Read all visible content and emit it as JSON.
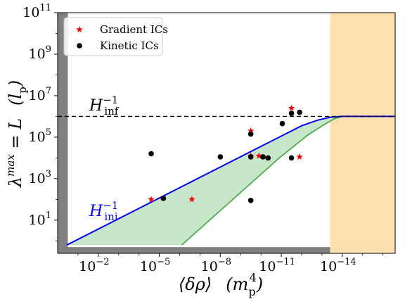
{
  "chart_data": {
    "type": "scatter",
    "x_scale": "log-reversed",
    "y_scale": "log",
    "x_exp_range": [
      0,
      -16.6
    ],
    "y_exp_range": [
      -0.6,
      11
    ],
    "xticks": [
      {
        "exp": -2,
        "label_base": "10",
        "label_exp": "−2"
      },
      {
        "exp": -5,
        "label_base": "10",
        "label_exp": "−5"
      },
      {
        "exp": -8,
        "label_base": "10",
        "label_exp": "−8"
      },
      {
        "exp": -11,
        "label_base": "10",
        "label_exp": "−11"
      },
      {
        "exp": -14,
        "label_base": "10",
        "label_exp": "−14"
      }
    ],
    "yticks": [
      {
        "exp": 1,
        "label_base": "10",
        "label_exp": "1"
      },
      {
        "exp": 3,
        "label_base": "10",
        "label_exp": "3"
      },
      {
        "exp": 5,
        "label_base": "10",
        "label_exp": "5"
      },
      {
        "exp": 7,
        "label_base": "10",
        "label_exp": "7"
      },
      {
        "exp": 9,
        "label_base": "10",
        "label_exp": "9"
      },
      {
        "exp": 11,
        "label_base": "10",
        "label_exp": "11"
      }
    ],
    "xlabel": "⟨δρ⟩   (m_p^4)",
    "ylabel": "λ^max = L   (l_p)",
    "legend": {
      "position": "top-left",
      "entries": [
        {
          "label": "Gradient ICs",
          "marker": "star",
          "color": "#ff0000"
        },
        {
          "label": "Kinetic ICs",
          "marker": "circle",
          "color": "#000000"
        }
      ]
    },
    "series": [
      {
        "name": "Gradient ICs",
        "marker": "star",
        "color": "#ff0000",
        "points": [
          {
            "x_exp": -4.6,
            "y_exp": 2.0
          },
          {
            "x_exp": -6.6,
            "y_exp": 2.0
          },
          {
            "x_exp": -9.5,
            "y_exp": 5.3
          },
          {
            "x_exp": -9.5,
            "y_exp": 4.1
          },
          {
            "x_exp": -9.9,
            "y_exp": 4.1
          },
          {
            "x_exp": -11.5,
            "y_exp": 6.4
          },
          {
            "x_exp": -11.9,
            "y_exp": 4.05
          }
        ]
      },
      {
        "name": "Kinetic ICs",
        "marker": "circle",
        "color": "#000000",
        "points": [
          {
            "x_exp": -4.6,
            "y_exp": 4.2
          },
          {
            "x_exp": -5.2,
            "y_exp": 2.05
          },
          {
            "x_exp": -8.0,
            "y_exp": 4.05
          },
          {
            "x_exp": -9.5,
            "y_exp": 5.15
          },
          {
            "x_exp": -9.5,
            "y_exp": 4.05
          },
          {
            "x_exp": -9.5,
            "y_exp": 1.95
          },
          {
            "x_exp": -10.1,
            "y_exp": 4.05
          },
          {
            "x_exp": -10.35,
            "y_exp": 4.0
          },
          {
            "x_exp": -11.05,
            "y_exp": 5.65
          },
          {
            "x_exp": -11.5,
            "y_exp": 6.15
          },
          {
            "x_exp": -11.5,
            "y_exp": 4.0
          },
          {
            "x_exp": -11.9,
            "y_exp": 6.2
          }
        ]
      }
    ],
    "curves": {
      "H_ini_line": {
        "color": "#0000ff",
        "points": [
          [
            -0.45,
            -0.2
          ],
          [
            -12.0,
            5.55
          ],
          [
            -12.8,
            5.82
          ],
          [
            -13.4,
            5.96
          ],
          [
            -14.0,
            6.0
          ],
          [
            -16.6,
            6.0
          ]
        ]
      },
      "green_lower": {
        "color": "#4caf50",
        "points": [
          [
            -6.1,
            -0.2
          ],
          [
            -10.9,
            4.0
          ],
          [
            -12.3,
            5.1
          ],
          [
            -13.1,
            5.6
          ],
          [
            -13.6,
            5.88
          ],
          [
            -14.0,
            6.0
          ]
        ]
      },
      "H_inf_level_exp": 6.0,
      "fill_color": "#c8e6c9"
    },
    "shaded_regions": [
      {
        "kind": "gray-left",
        "x_exp_from": 0,
        "x_exp_to": -0.5,
        "color": "#808080"
      },
      {
        "kind": "gray-bottom",
        "y_exp_from": -0.6,
        "y_exp_to": -0.3,
        "color": "#808080"
      },
      {
        "kind": "orange-right",
        "x_exp_from": -13.4,
        "x_exp_to": -16.6,
        "color": "#ffe0b0"
      }
    ],
    "annotations": [
      {
        "id": "hinf",
        "text": "H",
        "sub": "inf",
        "sup": "−1",
        "color": "#000000"
      },
      {
        "id": "hini",
        "text": "H",
        "sub": "ini",
        "sup": "−1",
        "color": "#0000ff"
      }
    ]
  }
}
